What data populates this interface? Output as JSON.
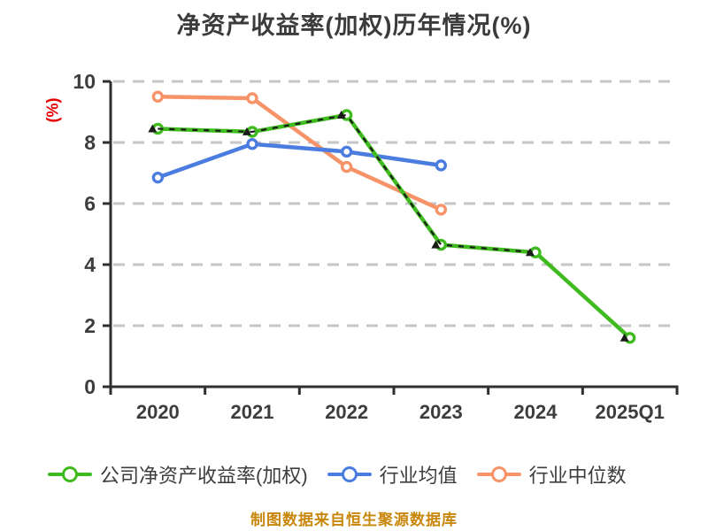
{
  "title": "净资产收益率(加权)历年情况(%)",
  "footnote": "制图数据来自恒生聚源数据库",
  "colors": {
    "background": "#ffffff",
    "title": "#3b3b3b",
    "axis": "#2f2f2f",
    "grid": "#c6c6c6",
    "tick_label": "#3d3d3d",
    "ylabel": "#e60000",
    "footnote": "#c8860a",
    "legend_text": "#3d3d3d",
    "overlay": "#1b1b1b"
  },
  "chart_data": {
    "type": "line",
    "title": "净资产收益率(加权)历年情况(%)",
    "xlabel": "",
    "ylabel": "(%)",
    "categories": [
      "2020",
      "2021",
      "2022",
      "2023",
      "2024",
      "2025Q1"
    ],
    "ylim": [
      0,
      10
    ],
    "yticks": [
      0,
      2,
      4,
      6,
      8,
      10
    ],
    "grid": "horizontal-dashed",
    "legend_position": "bottom",
    "series": [
      {
        "name": "公司净资产收益率(加权)",
        "color": "#3fbb1f",
        "marker": "circle-white-fill",
        "values": [
          8.45,
          8.35,
          8.9,
          4.65,
          4.4,
          1.6
        ]
      },
      {
        "name": "行业均值",
        "color": "#4b7de1",
        "marker": "circle-white-fill",
        "values": [
          6.85,
          7.95,
          7.7,
          7.25,
          null,
          null
        ]
      },
      {
        "name": "行业中位数",
        "color": "#f79368",
        "marker": "circle-white-fill",
        "values": [
          9.5,
          9.45,
          7.2,
          5.8,
          null,
          null
        ]
      }
    ],
    "overlay_note": "black dashed line with small triangle markers coincides with company series"
  },
  "legend": {
    "items": [
      {
        "label": "公司净资产收益率(加权)"
      },
      {
        "label": "行业均值"
      },
      {
        "label": "行业中位数"
      }
    ]
  }
}
